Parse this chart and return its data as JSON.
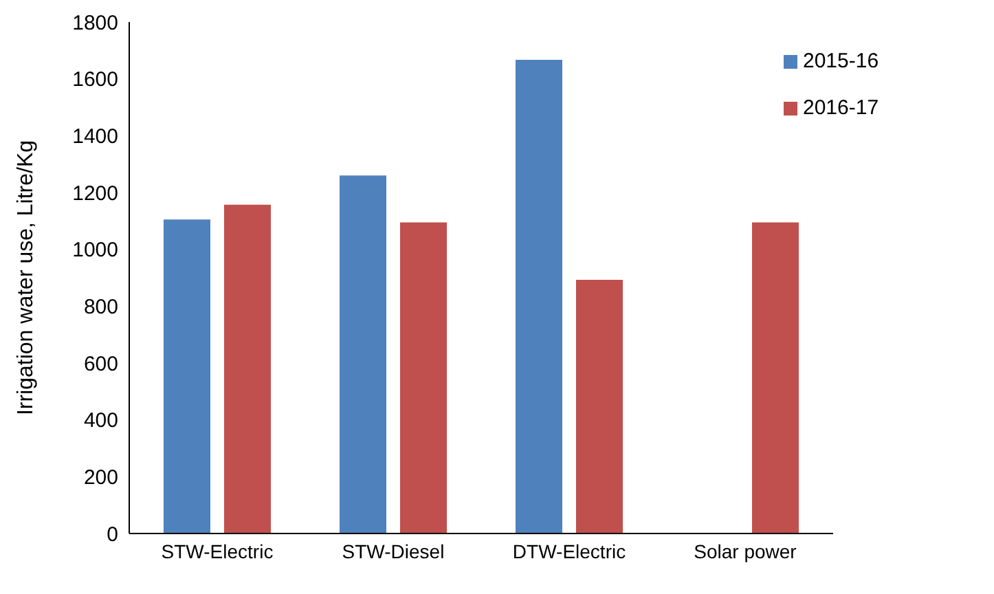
{
  "chart_data": {
    "type": "bar",
    "ylabel": "Irrigation water use, Litre/Kg",
    "categories": [
      "STW-Electric",
      "STW-Diesel",
      "DTW-Electric",
      "Solar power"
    ],
    "series": [
      {
        "name": "2015-16",
        "color": "#4f81bd",
        "values": [
          1105,
          1260,
          1667,
          null
        ]
      },
      {
        "name": "2016-17",
        "color": "#c0504d",
        "values": [
          1157,
          1095,
          893,
          1095
        ]
      }
    ],
    "ylim": [
      0,
      1800
    ],
    "yticks": [
      0,
      200,
      400,
      600,
      800,
      1000,
      1200,
      1400,
      1600,
      1800
    ],
    "grid": false,
    "legend": "top right"
  }
}
